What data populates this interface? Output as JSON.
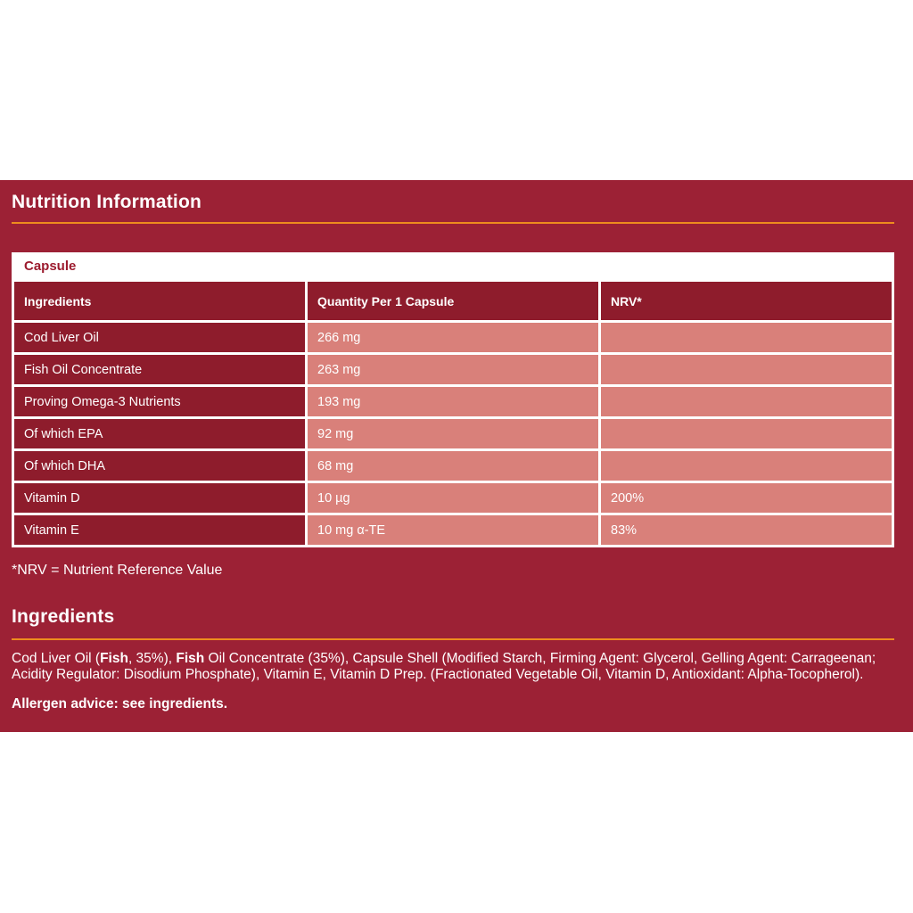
{
  "panel": {
    "title": "Nutrition Information",
    "table": {
      "caption": "Capsule",
      "columns": [
        "Ingredients",
        "Quantity Per 1 Capsule",
        "NRV*"
      ],
      "rows": [
        {
          "ingredient": "Cod Liver Oil",
          "quantity": "266 mg",
          "nrv": ""
        },
        {
          "ingredient": "Fish Oil Concentrate",
          "quantity": "263 mg",
          "nrv": ""
        },
        {
          "ingredient": "Proving Omega-3 Nutrients",
          "quantity": "193 mg",
          "nrv": ""
        },
        {
          "ingredient": "Of which EPA",
          "quantity": "92 mg",
          "nrv": ""
        },
        {
          "ingredient": "Of which DHA",
          "quantity": "68 mg",
          "nrv": ""
        },
        {
          "ingredient": "Vitamin D",
          "quantity": "10 µg",
          "nrv": "200%"
        },
        {
          "ingredient": "Vitamin E",
          "quantity": "10 mg α-TE",
          "nrv": "83%"
        }
      ]
    },
    "footnote": "*NRV = Nutrient Reference Value",
    "ingredients": {
      "title": "Ingredients",
      "segments": [
        {
          "text": "Cod Liver Oil (",
          "bold": false
        },
        {
          "text": "Fish",
          "bold": true
        },
        {
          "text": ", 35%), ",
          "bold": false
        },
        {
          "text": "Fish",
          "bold": true
        },
        {
          "text": " Oil Concentrate (35%), Capsule Shell (Modified Starch, Firming Agent: Glycerol, Gelling Agent: Carrageenan; Acidity Regulator: Disodium Phosphate), Vitamin E, Vitamin D Prep. (Fractionated Vegetable Oil, Vitamin D, Antioxidant: Alpha-Tocopherol).",
          "bold": false
        }
      ]
    },
    "allergen": "Allergen advice: see ingredients."
  },
  "colors": {
    "panel_bg": "#9c2135",
    "cell_dark": "#8e1c2c",
    "cell_light": "#d9807a",
    "accent_rule": "#ee8c1e",
    "caption_text": "#9c1b2e",
    "text": "#ffffff"
  }
}
